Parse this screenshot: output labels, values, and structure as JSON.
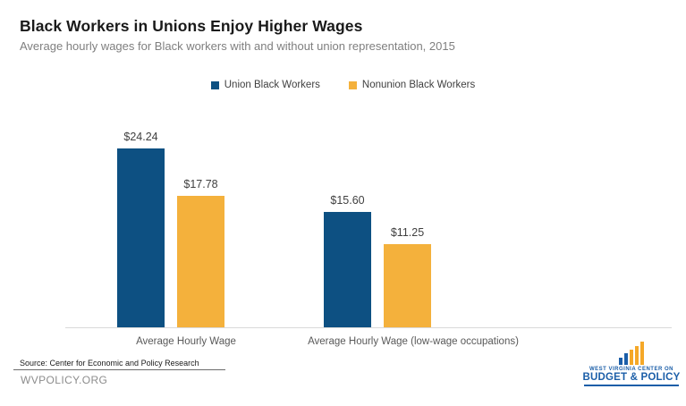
{
  "header": {
    "title": "Black Workers in Unions Enjoy Higher Wages",
    "subtitle": "Average hourly wages for Black workers with and without union representation, 2015"
  },
  "legend": [
    {
      "label": "Union Black Workers",
      "color": "#0d5082"
    },
    {
      "label": "Nonunion Black Workers",
      "color": "#f4b13c"
    }
  ],
  "chart_data": {
    "type": "bar",
    "title": "Black Workers in Unions Enjoy Higher Wages",
    "subtitle": "Average hourly wages for Black workers with and without union representation, 2015",
    "categories": [
      "Average Hourly Wage",
      "Average Hourly Wage (low-wage occupations)"
    ],
    "series": [
      {
        "name": "Union Black Workers",
        "color": "#0d5082",
        "values": [
          24.24,
          15.6
        ],
        "data_labels": [
          "$24.24",
          "$15.60"
        ]
      },
      {
        "name": "Nonunion Black Workers",
        "color": "#f4b13c",
        "values": [
          17.78,
          11.25
        ],
        "data_labels": [
          "$17.78",
          "$11.25"
        ]
      }
    ],
    "xlabel": "",
    "ylabel": "",
    "ylim": [
      0,
      28
    ],
    "grid": false,
    "y_axis_visible": false,
    "legend_position": "top",
    "data_labels_visible": true
  },
  "footer": {
    "source": "Source: Center for Economic and Policy Research",
    "website": "WVPOLICY.ORG",
    "logo": {
      "line1": "WEST VIRGINIA CENTER ON",
      "line2": "BUDGET & POLICY",
      "bar_colors": [
        "#1b5ea8",
        "#1b5ea8",
        "#f5a828",
        "#f5a828",
        "#f5a828"
      ],
      "bar_heights": [
        8,
        13,
        17,
        21,
        26
      ]
    }
  },
  "colors": {
    "union_blue": "#0d5082",
    "nonunion_gold": "#f4b13c",
    "axis_line": "#d9d9d9",
    "logo_blue": "#1b5ea8",
    "logo_gold": "#f5a828"
  }
}
